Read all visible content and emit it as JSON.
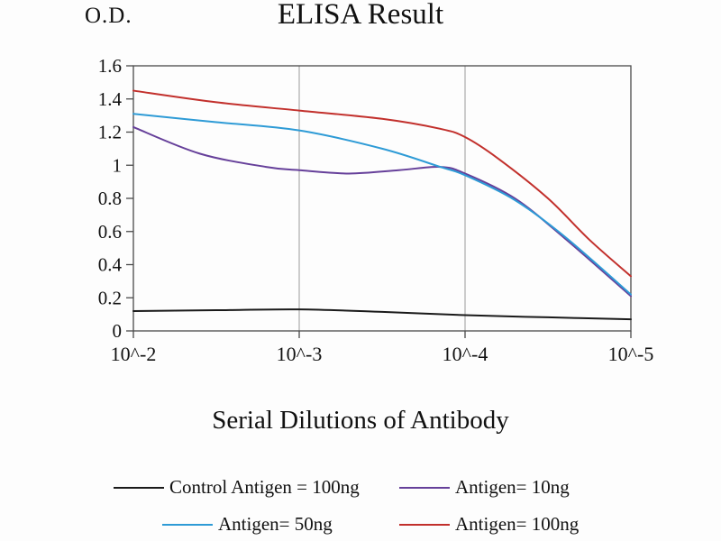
{
  "chart_data": {
    "type": "line",
    "title": "ELISA Result",
    "ylabel": "O.D.",
    "xlabel": "Serial Dilutions of Antibody",
    "x_tick_labels": [
      "10^-2",
      "10^-3",
      "10^-4",
      "10^-5"
    ],
    "y_tick_labels": [
      "0",
      "0.2",
      "0.4",
      "0.6",
      "0.8",
      "1",
      "1.2",
      "1.4",
      "1.6"
    ],
    "y_tick_values": [
      0,
      0.2,
      0.4,
      0.6,
      0.8,
      1,
      1.2,
      1.4,
      1.6
    ],
    "xlim": [
      0,
      3
    ],
    "ylim": [
      0,
      1.6
    ],
    "grid": "vertical-only",
    "legend_position": "bottom",
    "axis_color": "#4a4a4a",
    "grid_color": "#9a9a9a",
    "series": [
      {
        "name": "Control Antigen = 100ng",
        "color": "#1a1a1a",
        "points": [
          [
            0,
            0.12
          ],
          [
            0.5,
            0.125
          ],
          [
            1,
            0.13
          ],
          [
            1.5,
            0.115
          ],
          [
            2,
            0.095
          ],
          [
            2.5,
            0.082
          ],
          [
            3,
            0.07
          ]
        ]
      },
      {
        "name": "Antigen= 10ng",
        "color": "#66409a",
        "points": [
          [
            0,
            1.23
          ],
          [
            0.4,
            1.07
          ],
          [
            0.8,
            0.99
          ],
          [
            1,
            0.97
          ],
          [
            1.3,
            0.95
          ],
          [
            1.6,
            0.97
          ],
          [
            1.85,
            0.99
          ],
          [
            2,
            0.95
          ],
          [
            2.3,
            0.8
          ],
          [
            2.6,
            0.56
          ],
          [
            3,
            0.21
          ]
        ]
      },
      {
        "name": "Antigen= 50ng",
        "color": "#2e9bd6",
        "points": [
          [
            0,
            1.31
          ],
          [
            0.5,
            1.26
          ],
          [
            1,
            1.21
          ],
          [
            1.5,
            1.1
          ],
          [
            1.85,
            0.99
          ],
          [
            2,
            0.94
          ],
          [
            2.3,
            0.79
          ],
          [
            2.6,
            0.57
          ],
          [
            3,
            0.22
          ]
        ]
      },
      {
        "name": "Antigen= 100ng",
        "color": "#c2302c",
        "points": [
          [
            0,
            1.45
          ],
          [
            0.5,
            1.38
          ],
          [
            1,
            1.33
          ],
          [
            1.5,
            1.28
          ],
          [
            1.85,
            1.22
          ],
          [
            2,
            1.17
          ],
          [
            2.2,
            1.04
          ],
          [
            2.5,
            0.8
          ],
          [
            2.75,
            0.55
          ],
          [
            3,
            0.33
          ]
        ]
      }
    ]
  }
}
